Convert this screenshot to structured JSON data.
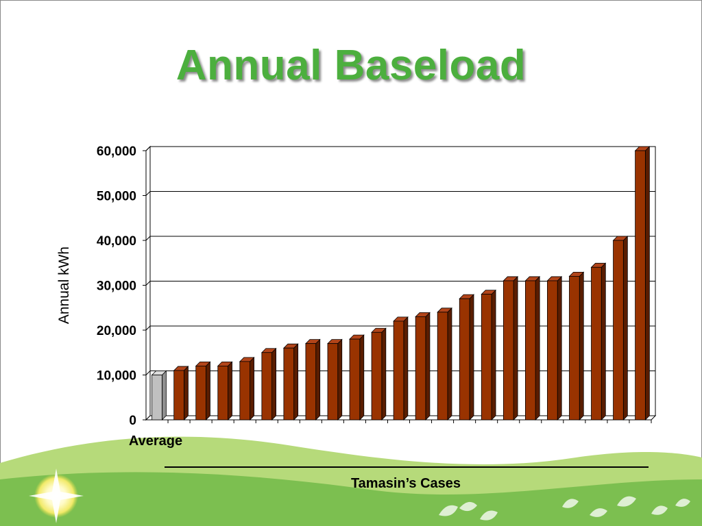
{
  "slide": {
    "title": "Annual Baseload",
    "colors": {
      "title": "#4caf3e",
      "average_bar": "#c0c0c0",
      "case_bar": "#993300",
      "hills_light": "#a8d26a",
      "hills_dark": "#7cbf50",
      "sun": "#fffbc8"
    }
  },
  "chart_data": {
    "type": "bar",
    "title": "",
    "ylabel": "Annual kWh",
    "xlabel": "",
    "ylim": [
      0,
      60000
    ],
    "yticks": [
      "0",
      "10,000",
      "20,000",
      "30,000",
      "40,000",
      "50,000",
      "60,000"
    ],
    "grid": true,
    "average": {
      "label": "Average",
      "value": 10000
    },
    "cases": {
      "label": "Tamasin’s Cases",
      "values": [
        11000,
        12000,
        12000,
        13000,
        15000,
        16000,
        17000,
        17000,
        18000,
        19500,
        22000,
        23000,
        24000,
        27000,
        28000,
        31000,
        31000,
        31000,
        32000,
        34000,
        40000,
        60000
      ]
    }
  }
}
